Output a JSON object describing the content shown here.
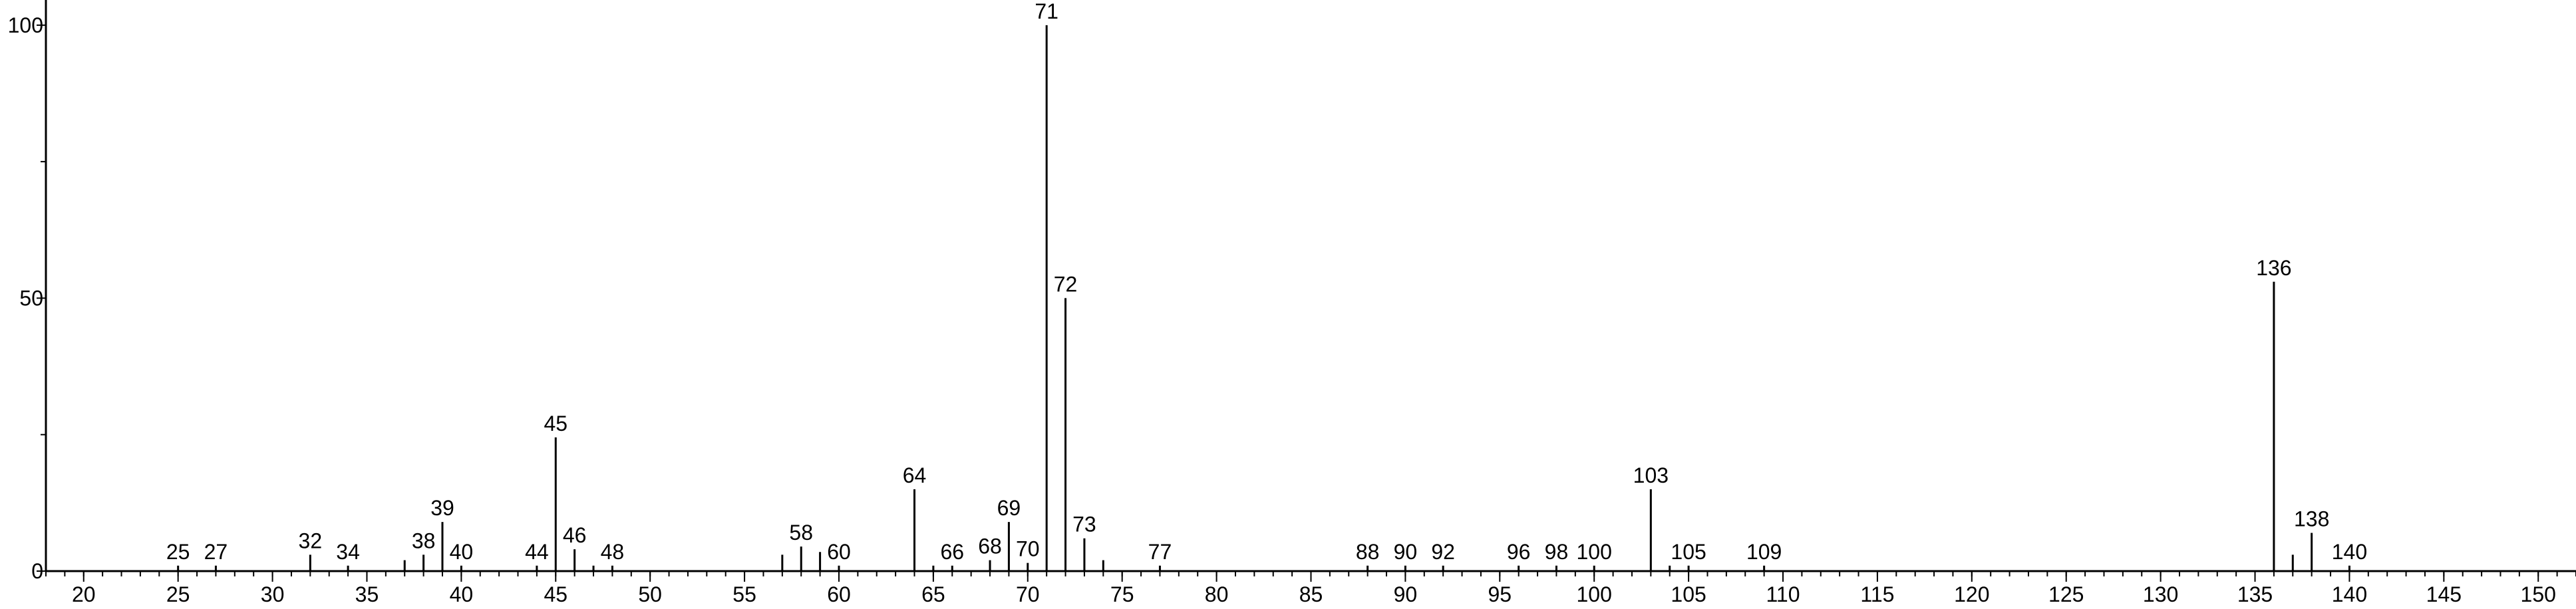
{
  "chart_data": {
    "type": "stem",
    "x": [
      25,
      27,
      32,
      34,
      37,
      38,
      39,
      40,
      44,
      45,
      46,
      47,
      48,
      57,
      58,
      59,
      60,
      64,
      65,
      66,
      68,
      69,
      70,
      71,
      72,
      73,
      74,
      77,
      88,
      90,
      92,
      96,
      98,
      100,
      103,
      104,
      105,
      109,
      136,
      137,
      138,
      140
    ],
    "values": [
      1,
      1,
      3,
      1,
      2,
      3,
      9,
      1,
      1,
      24.5,
      4,
      1,
      1,
      3,
      4.5,
      3.5,
      1,
      15,
      1,
      1,
      2,
      9,
      1.5,
      100,
      50,
      6,
      2,
      1,
      1,
      1,
      1,
      1,
      1,
      1,
      15,
      1,
      1,
      1,
      53,
      3,
      7,
      1
    ],
    "labels": [
      "25",
      "27",
      "32",
      "34",
      null,
      "38",
      "39",
      "40",
      "44",
      "45",
      "46",
      null,
      "48",
      null,
      "58",
      null,
      "60",
      "64",
      null,
      "66",
      "68",
      "69",
      "70",
      "71",
      "72",
      "73",
      null,
      "77",
      "88",
      "90",
      "92",
      "96",
      "98",
      "100",
      "103",
      null,
      "105",
      "109",
      "136",
      null,
      "138",
      "140"
    ],
    "color": "#000000",
    "xlim": [
      18,
      152
    ],
    "xticks": [
      20,
      25,
      30,
      35,
      40,
      45,
      50,
      55,
      60,
      65,
      70,
      75,
      80,
      85,
      90,
      95,
      100,
      105,
      110,
      115,
      120,
      125,
      130,
      135,
      140,
      145,
      150
    ],
    "xminor_step": 1,
    "ylim": [
      0,
      104
    ],
    "yticks": [
      0,
      50,
      100
    ],
    "yminor_ticks": [
      25,
      75
    ]
  }
}
